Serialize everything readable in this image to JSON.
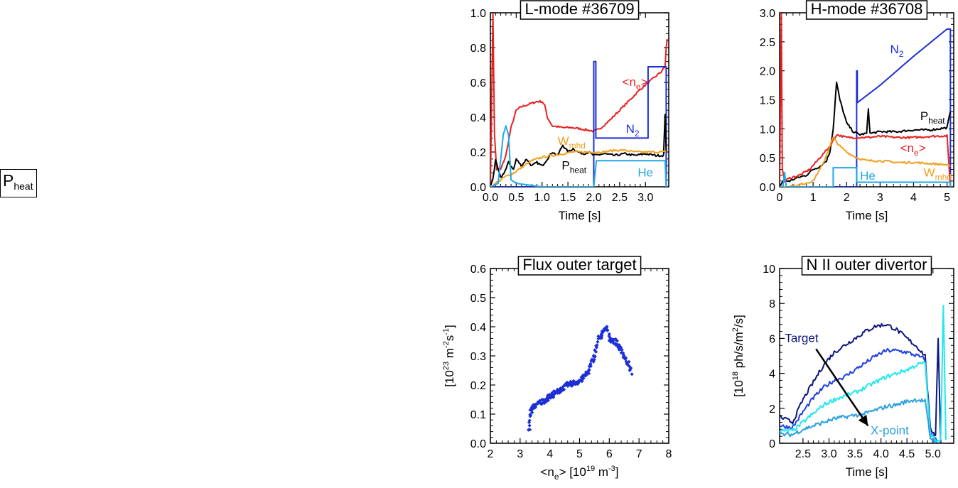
{
  "legend_box": {
    "label": "P",
    "sub": "heat"
  },
  "chart_data": [
    {
      "id": "lmode",
      "type": "line",
      "title": "L-mode #36709",
      "xlabel": "Time [s]",
      "xlim": [
        0,
        3.45
      ],
      "ylim": [
        0,
        1.0
      ],
      "xticks": [
        0,
        0.5,
        1.0,
        1.5,
        2.0,
        2.5,
        3.0
      ],
      "xtick_labels": [
        "0.0",
        "0.5",
        "1.0",
        "1.5",
        "2.0",
        "2.5",
        "3.0"
      ],
      "yticks": [
        0,
        0.2,
        0.4,
        0.6,
        0.8,
        1.0
      ],
      "ytick_labels": [
        "0.0",
        "0.2",
        "0.4",
        "0.6",
        "0.8",
        "1.0"
      ],
      "series": [
        {
          "name": "<ne>",
          "color": "#e8201f",
          "x": [
            0,
            0.05,
            0.08,
            0.12,
            0.2,
            0.3,
            0.4,
            0.5,
            0.6,
            0.7,
            0.8,
            0.9,
            1.0,
            1.05,
            1.1,
            1.2,
            1.4,
            1.6,
            1.8,
            2.0,
            2.1,
            2.3,
            2.5,
            2.7,
            2.9,
            3.1,
            3.3,
            3.38,
            3.4,
            3.42
          ],
          "y": [
            0,
            1.0,
            0.3,
            0.1,
            0.1,
            0.18,
            0.34,
            0.44,
            0.46,
            0.47,
            0.48,
            0.49,
            0.49,
            0.47,
            0.4,
            0.35,
            0.34,
            0.34,
            0.33,
            0.32,
            0.33,
            0.38,
            0.44,
            0.5,
            0.56,
            0.61,
            0.66,
            0.69,
            0.8,
            0.85
          ]
        },
        {
          "name": "N2",
          "color": "#1c2fd6",
          "x": [
            0,
            2.0,
            2.0,
            2.04,
            2.04,
            3.05,
            3.05,
            3.4,
            3.4
          ],
          "y": [
            0,
            0,
            0.72,
            0.72,
            0.28,
            0.28,
            0.69,
            0.69,
            0
          ]
        },
        {
          "name": "Pheat",
          "color": "#000000",
          "x": [
            0,
            0.05,
            0.1,
            0.15,
            0.2,
            0.3,
            0.35,
            0.45,
            0.5,
            0.6,
            0.7,
            0.8,
            0.9,
            1.0,
            1.1,
            1.2,
            1.3,
            1.4,
            1.5,
            1.6,
            1.7,
            1.8,
            1.9,
            2.0,
            2.2,
            2.4,
            2.6,
            2.8,
            3.0,
            3.2,
            3.35,
            3.38,
            3.4
          ],
          "y": [
            0,
            0.05,
            0.15,
            0.1,
            0.05,
            0.1,
            0.14,
            0.1,
            0.16,
            0.12,
            0.16,
            0.12,
            0.14,
            0.12,
            0.16,
            0.2,
            0.18,
            0.24,
            0.2,
            0.22,
            0.2,
            0.19,
            0.2,
            0.18,
            0.19,
            0.18,
            0.19,
            0.18,
            0.19,
            0.18,
            0.18,
            0.42,
            0.2
          ]
        },
        {
          "name": "Wmhd",
          "color": "#f0a020",
          "x": [
            0,
            0.1,
            0.2,
            0.3,
            0.4,
            0.5,
            0.6,
            0.7,
            0.8,
            0.9,
            1.0,
            1.2,
            1.4,
            1.6,
            1.8,
            2.0,
            2.2,
            2.4,
            2.6,
            2.8,
            3.0,
            3.2,
            3.4
          ],
          "y": [
            0,
            0.02,
            0.04,
            0.06,
            0.07,
            0.09,
            0.11,
            0.13,
            0.15,
            0.16,
            0.17,
            0.18,
            0.19,
            0.2,
            0.2,
            0.2,
            0.2,
            0.21,
            0.21,
            0.2,
            0.2,
            0.2,
            0.2
          ]
        },
        {
          "name": "He",
          "color": "#20a8e8",
          "x": [
            0,
            0.15,
            0.25,
            0.3,
            0.35,
            0.4,
            0.5,
            1.0,
            1.5,
            2.0,
            2.05,
            3.35,
            3.38,
            3.4
          ],
          "y": [
            0,
            0.02,
            0.3,
            0.35,
            0.3,
            0.04,
            0.02,
            0.0,
            0.0,
            0.0,
            0.15,
            0.15,
            0.15,
            0
          ]
        }
      ],
      "annotations": [
        {
          "text": "<n",
          "sub": "e",
          "after": ">",
          "color": "#e8201f",
          "at": [
            2.55,
            0.58
          ]
        },
        {
          "text": "N",
          "sub": "2",
          "after": "",
          "color": "#1c2fd6",
          "at": [
            2.62,
            0.31
          ]
        },
        {
          "text": "W",
          "sub": "mhd",
          "after": "",
          "color": "#f0a020",
          "at": [
            1.3,
            0.24
          ]
        },
        {
          "text": "P",
          "sub": "heat",
          "after": "",
          "color": "#000000",
          "at": [
            1.38,
            0.1
          ]
        },
        {
          "text": "He",
          "sub": "",
          "after": "",
          "color": "#20a8e8",
          "at": [
            2.85,
            0.06
          ]
        }
      ]
    },
    {
      "id": "hmode",
      "type": "line",
      "title": "H-mode #36708",
      "xlabel": "Time [s]",
      "xlim": [
        0,
        5.2
      ],
      "ylim": [
        0,
        3.0
      ],
      "xticks": [
        0,
        1,
        2,
        3,
        4,
        5
      ],
      "xtick_labels": [
        "0",
        "1",
        "2",
        "3",
        "4",
        "5"
      ],
      "yticks": [
        0,
        0.5,
        1.0,
        1.5,
        2.0,
        2.5,
        3.0
      ],
      "ytick_labels": [
        "0.0",
        "0.5",
        "1.0",
        "1.5",
        "2.0",
        "2.5",
        "3.0"
      ],
      "series": [
        {
          "name": "N2",
          "color": "#1c2fd6",
          "x": [
            0,
            2.3,
            2.3,
            2.32,
            2.32,
            3.0,
            4.0,
            5.0,
            5.1,
            5.1
          ],
          "y": [
            0,
            0,
            2.0,
            2.0,
            1.45,
            1.75,
            2.25,
            2.72,
            2.72,
            0
          ]
        },
        {
          "name": "Pheat",
          "color": "#000000",
          "x": [
            0,
            0.1,
            0.3,
            0.5,
            0.8,
            1.0,
            1.2,
            1.4,
            1.5,
            1.6,
            1.7,
            1.8,
            1.9,
            2.0,
            2.2,
            2.4,
            2.6,
            2.65,
            2.7,
            3.0,
            3.5,
            4.0,
            4.5,
            5.0,
            5.1
          ],
          "y": [
            0,
            0.1,
            0.1,
            0.15,
            0.2,
            0.3,
            0.35,
            0.45,
            0.6,
            1.0,
            1.8,
            1.5,
            1.3,
            1.1,
            0.95,
            0.9,
            0.92,
            1.35,
            0.92,
            0.95,
            0.95,
            0.98,
            0.98,
            1.02,
            1.3
          ]
        },
        {
          "name": "<ne>",
          "color": "#e8201f",
          "x": [
            0,
            0.05,
            0.08,
            0.15,
            0.3,
            0.6,
            0.9,
            1.2,
            1.5,
            1.7,
            2.0,
            2.3,
            2.6,
            3.0,
            3.5,
            4.0,
            4.5,
            5.0,
            5.1
          ],
          "y": [
            0,
            3.0,
            0.3,
            0.1,
            0.15,
            0.2,
            0.3,
            0.5,
            0.7,
            0.9,
            0.85,
            0.85,
            0.85,
            0.87,
            0.85,
            0.85,
            0.87,
            0.88,
            0.0
          ]
        },
        {
          "name": "Wmhd",
          "color": "#f0a020",
          "x": [
            0,
            0.5,
            1.0,
            1.3,
            1.6,
            1.8,
            2.0,
            2.3,
            2.6,
            3.0,
            3.5,
            4.0,
            4.5,
            5.0,
            5.1
          ],
          "y": [
            0,
            0.02,
            0.1,
            0.4,
            0.85,
            0.7,
            0.6,
            0.5,
            0.45,
            0.45,
            0.42,
            0.42,
            0.4,
            0.38,
            0.35
          ]
        },
        {
          "name": "He",
          "color": "#20a8e8",
          "x": [
            0,
            0.1,
            0.15,
            0.2,
            0.25,
            1.0,
            1.5,
            1.6,
            1.6,
            2.3,
            2.3,
            5.1,
            5.1
          ],
          "y": [
            0,
            0.0,
            0.25,
            0.0,
            0.0,
            0.0,
            0.0,
            0.0,
            0.33,
            0.33,
            0.08,
            0.08,
            0
          ]
        }
      ],
      "annotations": [
        {
          "text": "N",
          "sub": "2",
          "after": "",
          "color": "#1c2fd6",
          "at": [
            3.3,
            2.3
          ]
        },
        {
          "text": "P",
          "sub": "heat",
          "after": "",
          "color": "#000000",
          "at": [
            4.2,
            1.15
          ]
        },
        {
          "text": "<n",
          "sub": "e",
          "after": ">",
          "color": "#e8201f",
          "at": [
            3.6,
            0.6
          ]
        },
        {
          "text": "W",
          "sub": "mhd",
          "after": "",
          "color": "#f0a020",
          "at": [
            4.3,
            0.18
          ]
        },
        {
          "text": "He",
          "sub": "",
          "after": "",
          "color": "#20a8e8",
          "at": [
            2.4,
            0.12
          ]
        }
      ]
    },
    {
      "id": "flux",
      "type": "scatter",
      "title": "Flux outer target",
      "xlabel": "<n",
      "xlabel_sub": "e",
      "xlabel_rest": "> [10",
      "xlabel_sup": "19",
      "xlabel_tail": " m",
      "xlabel_sup2": "-3",
      "xlabel_end": "]",
      "ylabel": "[10",
      "ylabel_sup": "23",
      "ylabel_mid": " m",
      "ylabel_sup2": "-2",
      "ylabel_mid2": "s",
      "ylabel_sup3": "-1",
      "ylabel_end": "]",
      "xlim": [
        2,
        8
      ],
      "ylim": [
        0,
        0.6
      ],
      "xticks": [
        2,
        3,
        4,
        5,
        6,
        7,
        8
      ],
      "xtick_labels": [
        "2",
        "3",
        "4",
        "5",
        "6",
        "7",
        "8"
      ],
      "yticks": [
        0,
        0.1,
        0.2,
        0.3,
        0.4,
        0.5,
        0.6
      ],
      "ytick_labels": [
        "0.0",
        "0.1",
        "0.2",
        "0.3",
        "0.4",
        "0.5",
        "0.6"
      ],
      "color": "#1c2fd6",
      "trend_x": [
        3.3,
        3.35,
        3.4,
        3.5,
        3.7,
        4.0,
        4.3,
        4.6,
        4.9,
        5.1,
        5.3,
        5.5,
        5.65,
        5.8,
        5.9,
        6.0,
        6.2,
        6.4,
        6.6,
        6.75
      ],
      "trend_y": [
        0.04,
        0.1,
        0.12,
        0.13,
        0.14,
        0.16,
        0.18,
        0.2,
        0.21,
        0.22,
        0.25,
        0.3,
        0.36,
        0.38,
        0.4,
        0.36,
        0.35,
        0.32,
        0.28,
        0.24
      ]
    },
    {
      "id": "nii",
      "type": "line",
      "title": "N II outer divertor",
      "xlabel": "Time [s]",
      "ylabel": "[10",
      "ylabel_sup": "18",
      "ylabel_mid": " ph/s/m",
      "ylabel_sup2": "2",
      "ylabel_end": "/s]",
      "xlim": [
        2.05,
        5.4
      ],
      "ylim": [
        0,
        10
      ],
      "xticks": [
        2.5,
        3.0,
        3.5,
        4.0,
        4.5,
        5.0
      ],
      "xtick_labels": [
        "2.5",
        "3.0",
        "3.5",
        "4.0",
        "4.5",
        "5.0"
      ],
      "yticks": [
        0,
        2,
        4,
        6,
        8,
        10
      ],
      "ytick_labels": [
        "0",
        "2",
        "4",
        "6",
        "8",
        "10"
      ],
      "series": [
        {
          "name": "Target",
          "color": "#0d1680",
          "x": [
            2.05,
            2.3,
            2.5,
            2.7,
            2.9,
            3.1,
            3.3,
            3.5,
            3.7,
            3.9,
            4.1,
            4.3,
            4.5,
            4.7,
            4.85,
            4.95,
            5.05,
            5.1,
            5.15
          ],
          "y": [
            1.5,
            1.2,
            2.5,
            3.5,
            4.5,
            5.2,
            5.6,
            6.0,
            6.4,
            6.7,
            6.8,
            6.5,
            6.0,
            5.5,
            5.0,
            0.8,
            0.5,
            6.0,
            0.0
          ]
        },
        {
          "name": "",
          "color": "#2040e0",
          "x": [
            2.05,
            2.3,
            2.5,
            2.7,
            2.9,
            3.1,
            3.3,
            3.5,
            3.7,
            3.9,
            4.1,
            4.3,
            4.5,
            4.7,
            4.85,
            4.95,
            5.05,
            5.1
          ],
          "y": [
            1.0,
            0.9,
            1.8,
            2.6,
            3.2,
            3.6,
            3.8,
            4.2,
            4.6,
            5.0,
            5.3,
            5.3,
            5.2,
            5.0,
            4.8,
            0.5,
            0.3,
            0.0
          ]
        },
        {
          "name": "",
          "color": "#20e8f0",
          "x": [
            2.05,
            2.3,
            2.5,
            2.7,
            2.9,
            3.1,
            3.3,
            3.5,
            3.7,
            3.9,
            4.1,
            4.3,
            4.5,
            4.7,
            4.85,
            4.95,
            5.05,
            5.15,
            5.2,
            5.25
          ],
          "y": [
            0.7,
            0.7,
            1.2,
            1.7,
            2.2,
            2.5,
            2.7,
            2.9,
            3.2,
            3.5,
            3.8,
            4.0,
            4.2,
            4.5,
            4.6,
            0.5,
            0.2,
            0.2,
            8.0,
            0.2
          ]
        },
        {
          "name": "X-point",
          "color": "#2aa0e0",
          "x": [
            2.05,
            2.3,
            2.5,
            2.7,
            2.9,
            3.1,
            3.3,
            3.5,
            3.7,
            3.9,
            4.1,
            4.3,
            4.5,
            4.7,
            4.85,
            4.95,
            5.05
          ],
          "y": [
            0.5,
            0.5,
            0.8,
            1.0,
            1.2,
            1.4,
            1.5,
            1.6,
            1.7,
            1.9,
            2.1,
            2.2,
            2.4,
            2.5,
            2.4,
            0.3,
            0.1
          ]
        }
      ],
      "annotations": [
        {
          "text": "Target",
          "sub": "",
          "after": "",
          "color": "#0d1680",
          "at": [
            2.15,
            5.8
          ]
        },
        {
          "text": "X-point",
          "sub": "",
          "after": "",
          "color": "#2aa0e0",
          "at": [
            3.8,
            0.5
          ]
        }
      ],
      "arrow": {
        "from": [
          2.75,
          5.4
        ],
        "to": [
          3.75,
          1.0
        ]
      }
    }
  ]
}
